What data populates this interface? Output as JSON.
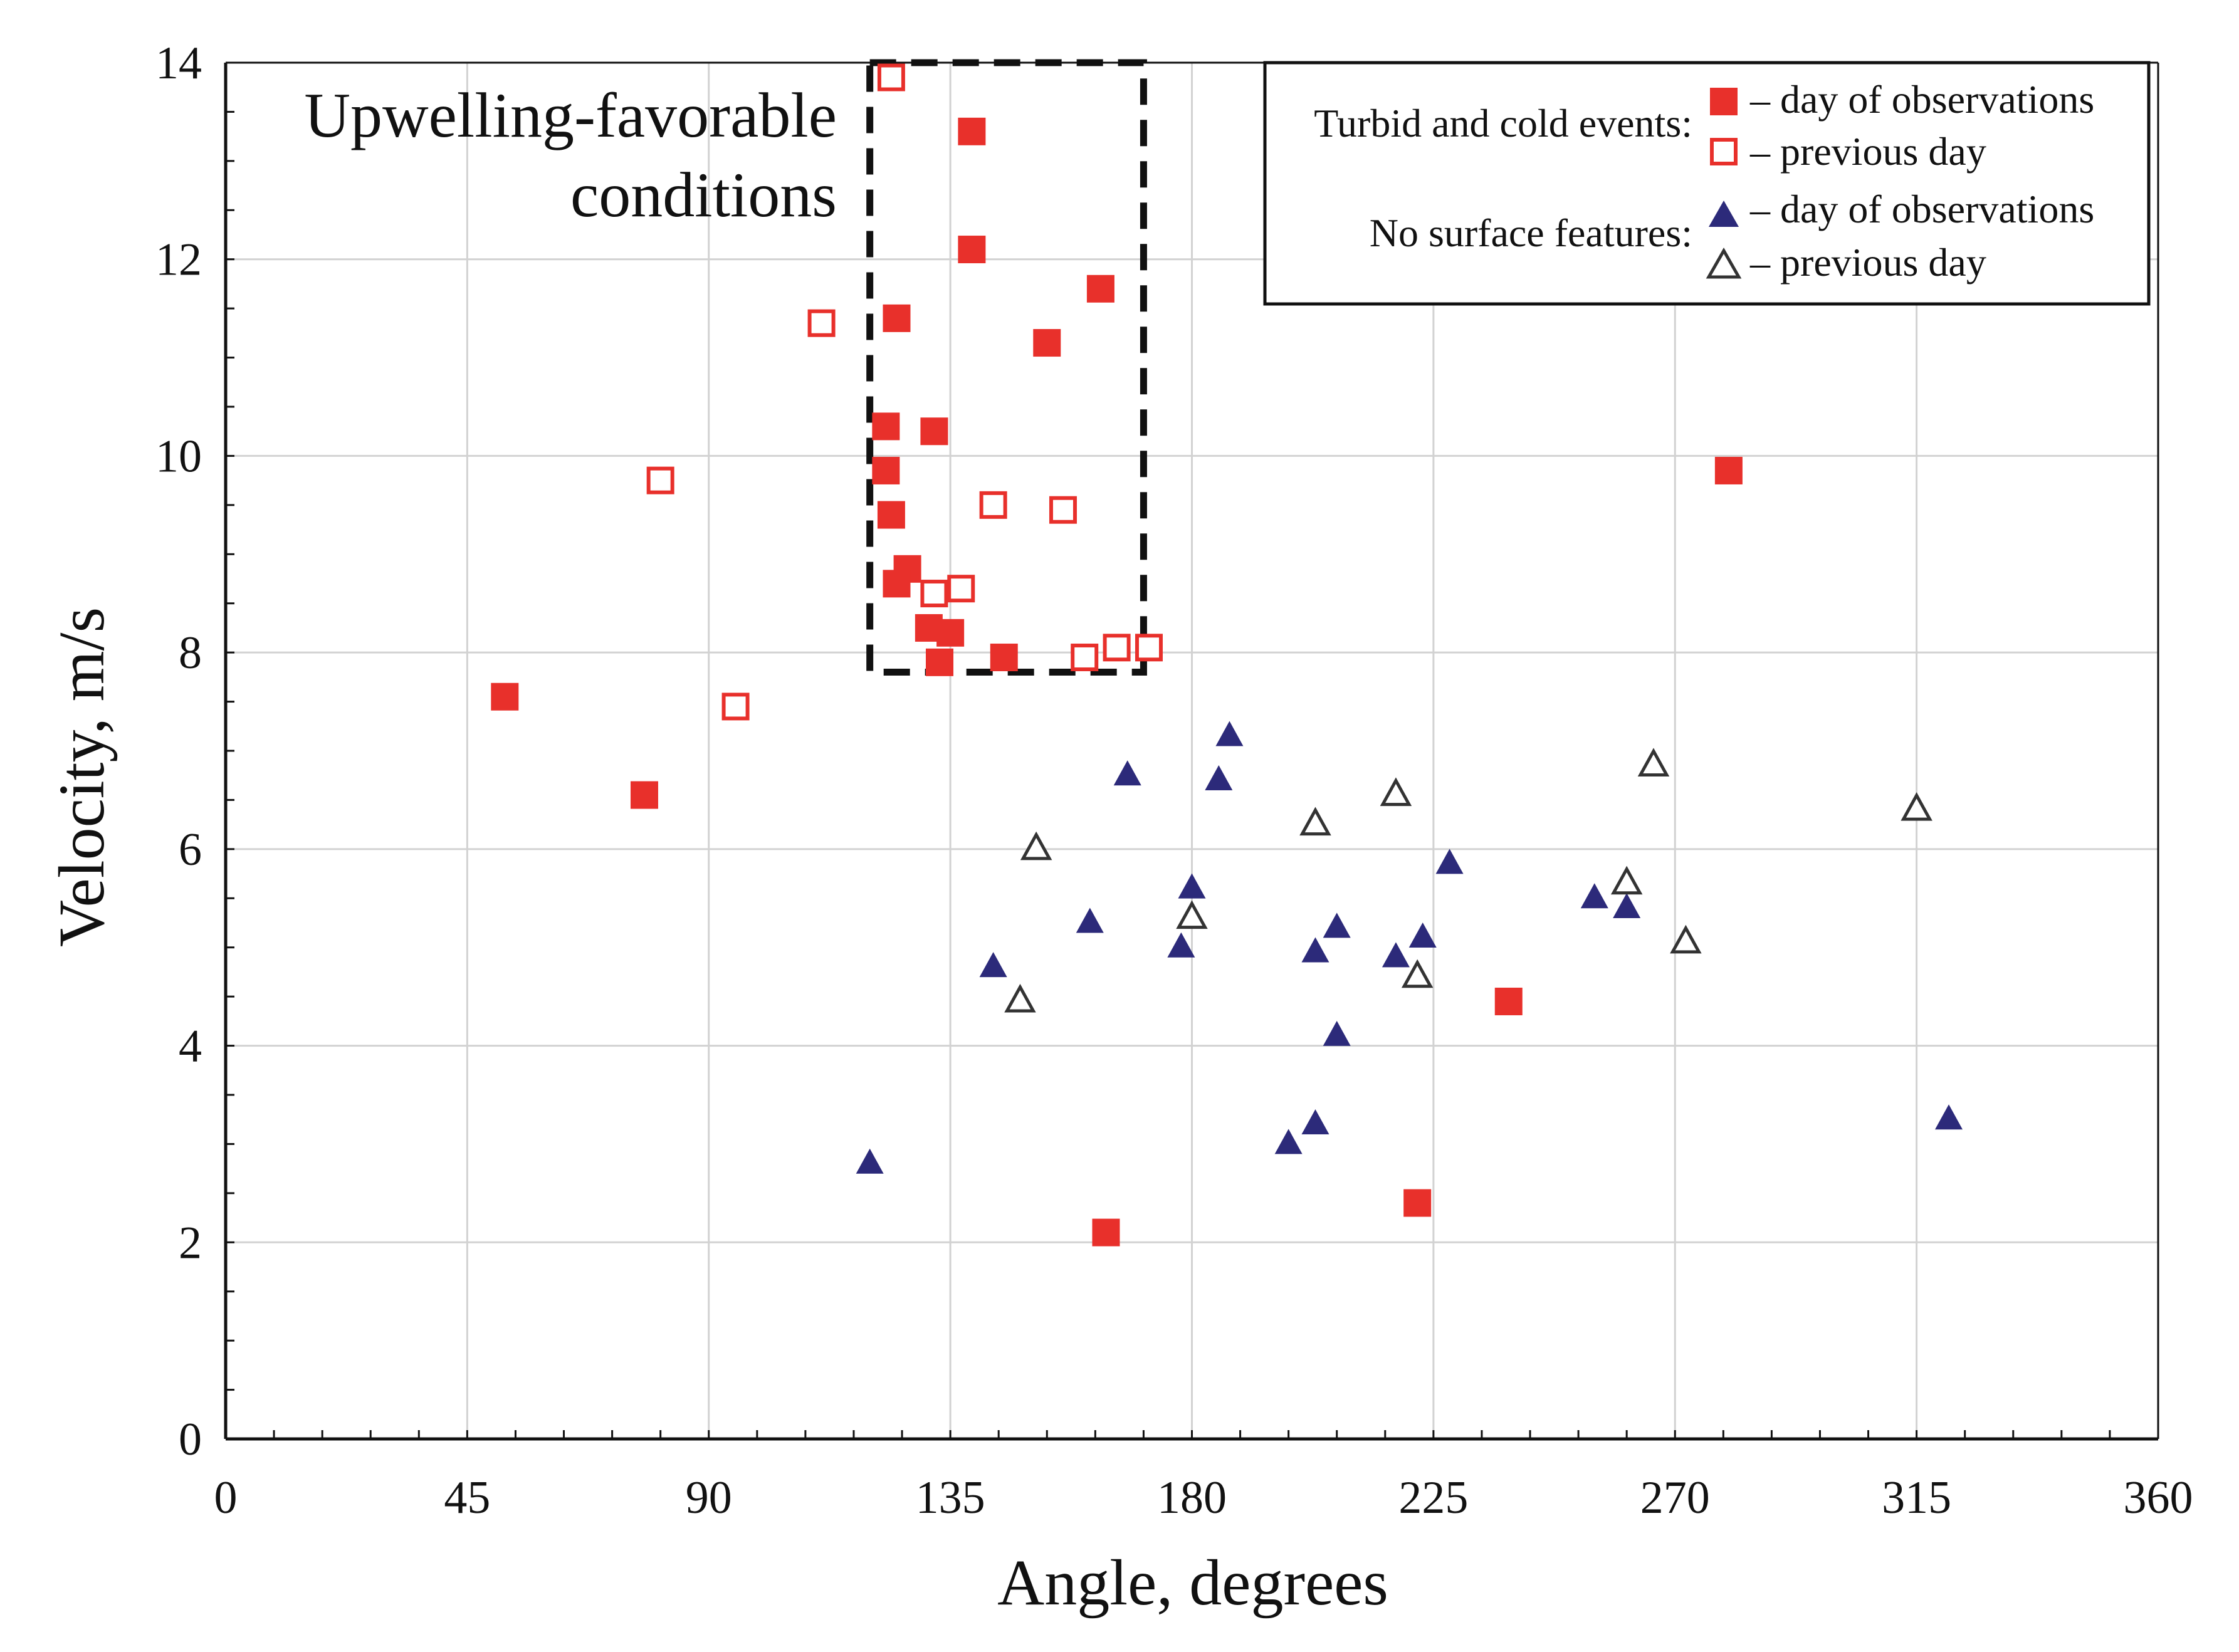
{
  "chart_data": {
    "type": "scatter",
    "title": "",
    "xlabel": "Angle, degrees",
    "ylabel": "Velocity, m/s",
    "xlim": [
      0,
      360
    ],
    "ylim": [
      0,
      14
    ],
    "xticks": [
      0,
      45,
      90,
      135,
      180,
      225,
      270,
      315,
      360
    ],
    "yticks": [
      0,
      2,
      4,
      6,
      8,
      10,
      12,
      14
    ],
    "x_tick_labels": [
      "0",
      "45",
      "90",
      "135",
      "180",
      "225",
      "270",
      "315",
      "360"
    ],
    "y_tick_labels": [
      "0",
      "2",
      "4",
      "6",
      "8",
      "10",
      "12",
      "14"
    ],
    "grid": true,
    "annotation": {
      "lines": [
        "Upwelling-favorable",
        "conditions"
      ],
      "region": {
        "x": [
          120,
          171
        ],
        "y": [
          7.8,
          14
        ]
      }
    },
    "legend": {
      "position": "top-right",
      "groups": [
        {
          "label": "Turbid and cold events:",
          "entries": [
            "– day of observations",
            "– previous day"
          ]
        },
        {
          "label": "No surface features:",
          "entries": [
            "– day of observations",
            "– previous day"
          ]
        }
      ]
    },
    "colors": {
      "red": "#e8302b",
      "navy": "#2c2a7a",
      "dark": "#333333",
      "grid": "#d2d2d2"
    },
    "series": [
      {
        "name": "Turbid and cold events – day of observations",
        "marker": "square-filled",
        "color": "#e8302b",
        "points": [
          [
            139,
            13.3
          ],
          [
            139,
            12.1
          ],
          [
            125,
            11.4
          ],
          [
            163,
            11.7
          ],
          [
            153,
            11.15
          ],
          [
            123,
            10.3
          ],
          [
            132,
            10.25
          ],
          [
            123,
            9.85
          ],
          [
            124,
            9.4
          ],
          [
            127,
            8.85
          ],
          [
            125,
            8.7
          ],
          [
            131,
            8.25
          ],
          [
            135,
            8.2
          ],
          [
            133,
            7.9
          ],
          [
            145,
            7.95
          ],
          [
            52,
            7.55
          ],
          [
            78,
            6.55
          ],
          [
            280,
            9.85
          ],
          [
            239,
            4.45
          ],
          [
            222,
            2.4
          ],
          [
            164,
            2.1
          ]
        ]
      },
      {
        "name": "Turbid and cold events – previous day",
        "marker": "square-open",
        "color": "#e8302b",
        "points": [
          [
            124,
            13.85
          ],
          [
            111,
            11.35
          ],
          [
            81,
            9.75
          ],
          [
            143,
            9.5
          ],
          [
            156,
            9.45
          ],
          [
            137,
            8.65
          ],
          [
            132,
            8.6
          ],
          [
            160,
            7.95
          ],
          [
            166,
            8.05
          ],
          [
            172,
            8.05
          ],
          [
            95,
            7.45
          ]
        ]
      },
      {
        "name": "No surface features – day of observations",
        "marker": "triangle-filled",
        "color": "#2c2a7a",
        "points": [
          [
            187,
            7.15
          ],
          [
            168,
            6.75
          ],
          [
            185,
            6.7
          ],
          [
            228,
            5.85
          ],
          [
            255,
            5.5
          ],
          [
            261,
            5.4
          ],
          [
            180,
            5.6
          ],
          [
            161,
            5.25
          ],
          [
            207,
            5.2
          ],
          [
            203,
            4.95
          ],
          [
            178,
            5.0
          ],
          [
            218,
            4.9
          ],
          [
            223,
            5.1
          ],
          [
            143,
            4.8
          ],
          [
            207,
            4.1
          ],
          [
            203,
            3.2
          ],
          [
            198,
            3.0
          ],
          [
            120,
            2.8
          ],
          [
            321,
            3.25
          ]
        ]
      },
      {
        "name": "No surface features – previous day",
        "marker": "triangle-open",
        "color": "#333333",
        "points": [
          [
            151,
            6.0
          ],
          [
            148,
            4.45
          ],
          [
            180,
            5.3
          ],
          [
            203,
            6.25
          ],
          [
            218,
            6.55
          ],
          [
            222,
            4.7
          ],
          [
            266,
            6.85
          ],
          [
            261,
            5.65
          ],
          [
            272,
            5.05
          ],
          [
            315,
            6.4
          ]
        ]
      }
    ]
  }
}
